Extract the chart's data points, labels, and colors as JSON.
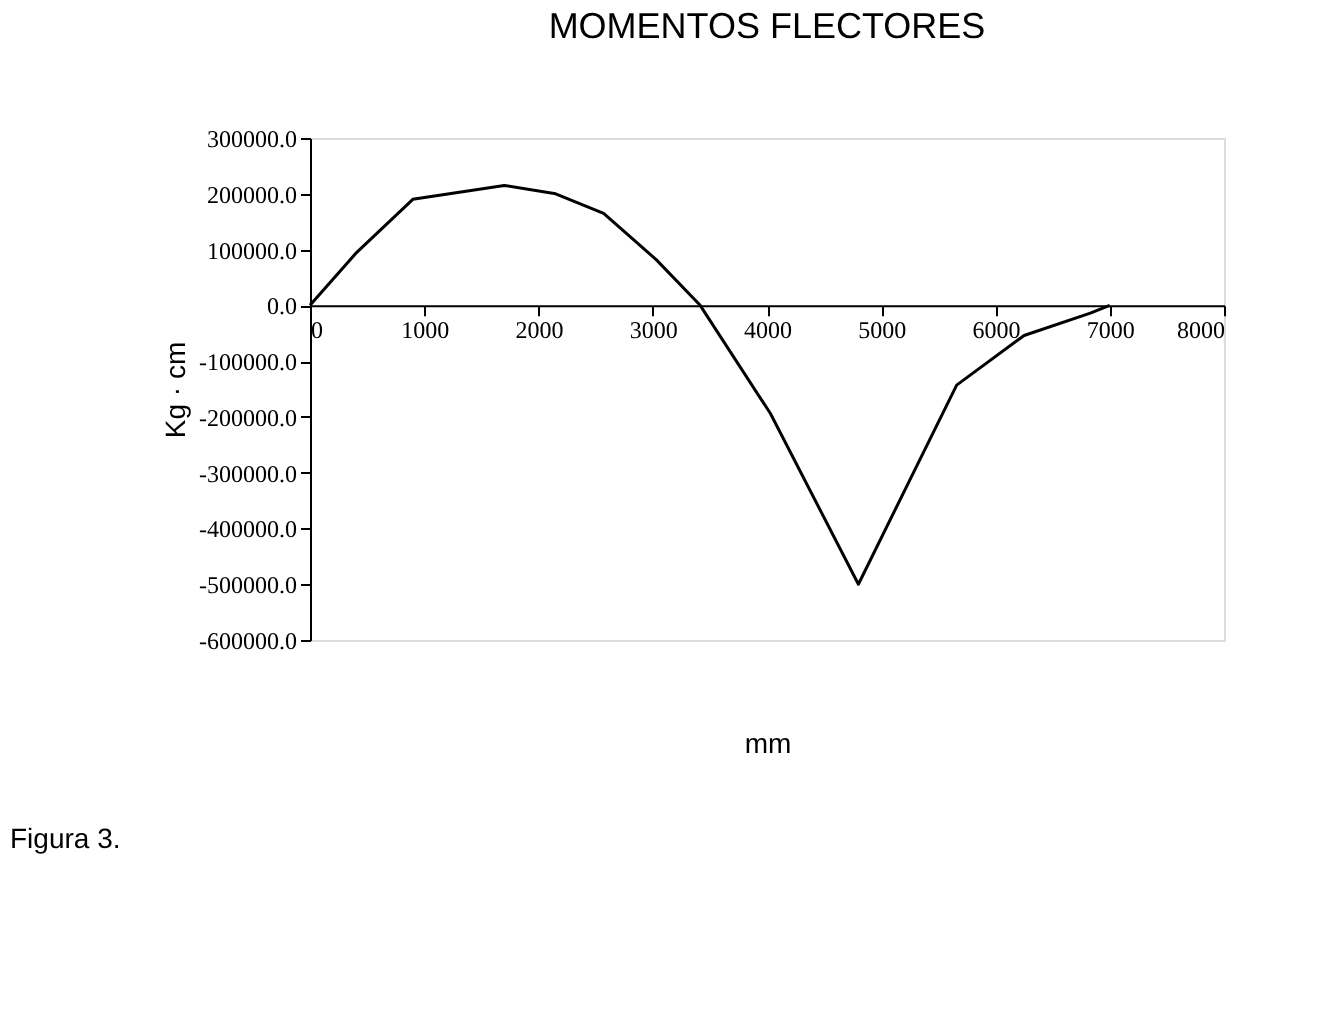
{
  "chart_data": {
    "type": "line",
    "title": "MOMENTOS FLECTORES",
    "xlabel": "mm",
    "ylabel": "Kg · cm",
    "x": [
      0,
      400,
      900,
      1700,
      2150,
      2570,
      3030,
      3415,
      4030,
      4800,
      5660,
      6250,
      6830,
      7000
    ],
    "values": [
      0,
      93000,
      190000,
      215000,
      200000,
      165000,
      82000,
      0,
      -194000,
      -500000,
      -143000,
      -54000,
      -14000,
      0
    ],
    "color": "#000000",
    "xlim": [
      0,
      8000
    ],
    "xticks": [
      0,
      1000,
      2000,
      3000,
      4000,
      5000,
      6000,
      7000,
      8000
    ],
    "ylim": [
      -600000,
      300000
    ],
    "yticks": [
      {
        "value": 300000,
        "label": "300000.0"
      },
      {
        "value": 200000,
        "label": "200000.0"
      },
      {
        "value": 100000,
        "label": "100000.0"
      },
      {
        "value": 0,
        "label": "0.0"
      },
      {
        "value": -100000,
        "label": "-100000.0"
      },
      {
        "value": -200000,
        "label": "-200000.0"
      },
      {
        "value": -300000,
        "label": "-300000.0"
      },
      {
        "value": -400000,
        "label": "-400000.0"
      },
      {
        "value": -500000,
        "label": "-500000.0"
      },
      {
        "value": -600000,
        "label": "-600000.0"
      }
    ],
    "grid": false,
    "marker": "none",
    "line_style": "solid",
    "annotations": [
      "Figura 3."
    ]
  }
}
